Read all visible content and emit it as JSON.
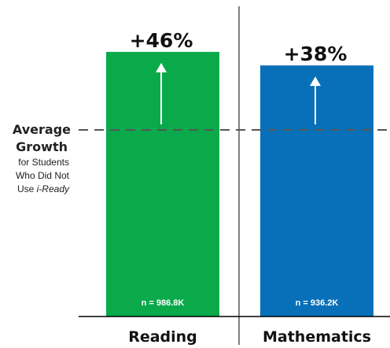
{
  "chart_data": {
    "type": "bar",
    "categories": [
      "Reading",
      "Mathematics"
    ],
    "values": [
      46,
      38
    ],
    "value_labels": [
      "+46%",
      "+38%"
    ],
    "sample_sizes": [
      "n = 986.8K",
      "n = 936.2K"
    ],
    "baseline": {
      "value": 0,
      "label_line1": "Average",
      "label_line2": "Growth",
      "label_line3": "for Students",
      "label_line4": "Who Did Not",
      "label_prefix": "Use ",
      "label_italic": "i-Ready"
    },
    "ylim": [
      -110,
      51
    ],
    "grid": false,
    "colors": {
      "Reading": "#0aaa4b",
      "Mathematics": "#0870b8",
      "arrow": "#ffffff",
      "baseline": "#555555",
      "axis": "#000000"
    }
  }
}
